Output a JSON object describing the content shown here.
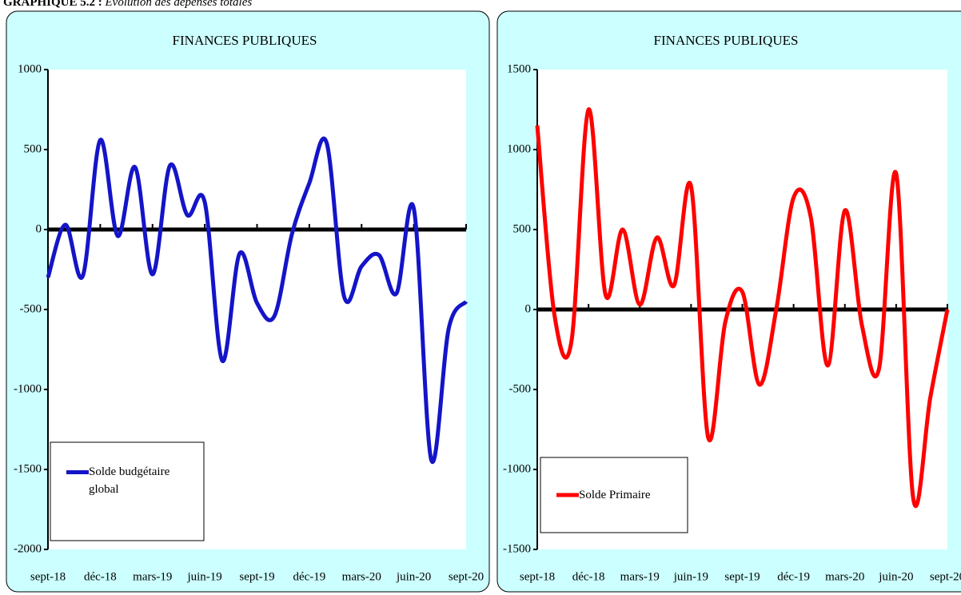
{
  "header": {
    "label": "GRAPHIQUE 5.2 :",
    "text": "Evolution des dépenses totales"
  },
  "chart_data": [
    {
      "type": "line",
      "title": "FINANCES PUBLIQUES",
      "categories": [
        "sept-18",
        null,
        null,
        "déc-18",
        null,
        null,
        "mars-19",
        null,
        null,
        "juin-19",
        null,
        null,
        "sept-19",
        null,
        null,
        "déc-19",
        null,
        null,
        "mars-20",
        null,
        null,
        "juin-20",
        null,
        null,
        "sept-20"
      ],
      "series": [
        {
          "name": "Solde budgétaire global",
          "color": "#1414c8",
          "values": [
            -300,
            30,
            -290,
            560,
            -40,
            390,
            -280,
            400,
            90,
            170,
            -820,
            -150,
            -460,
            -540,
            -30,
            290,
            540,
            -420,
            -230,
            -160,
            -400,
            130,
            -1440,
            -620,
            -450
          ]
        }
      ],
      "ylim": [
        -2000,
        1000
      ],
      "yticks": [
        -2000,
        -1500,
        -1000,
        -500,
        0,
        500,
        1000
      ],
      "legend": "lower left",
      "grid": false
    },
    {
      "type": "line",
      "title": "FINANCES PUBLIQUES",
      "categories": [
        "sept-18",
        null,
        null,
        "déc-18",
        null,
        null,
        "mars-19",
        null,
        null,
        "juin-19",
        null,
        null,
        "sept-19",
        null,
        null,
        "déc-19",
        null,
        null,
        "mars-20",
        null,
        null,
        "juin-20",
        null,
        null,
        "sept-20"
      ],
      "series": [
        {
          "name": "Solde Primaire",
          "color": "#ff0000",
          "values": [
            1150,
            -30,
            -200,
            1250,
            90,
            500,
            30,
            450,
            150,
            770,
            -800,
            -80,
            110,
            -470,
            10,
            700,
            580,
            -350,
            620,
            -100,
            -370,
            850,
            -1180,
            -550,
            0
          ]
        }
      ],
      "ylim": [
        -1500,
        1500
      ],
      "yticks": [
        -1500,
        -1000,
        -500,
        0,
        500,
        1000,
        1500
      ],
      "legend": "lower left",
      "grid": false
    }
  ]
}
